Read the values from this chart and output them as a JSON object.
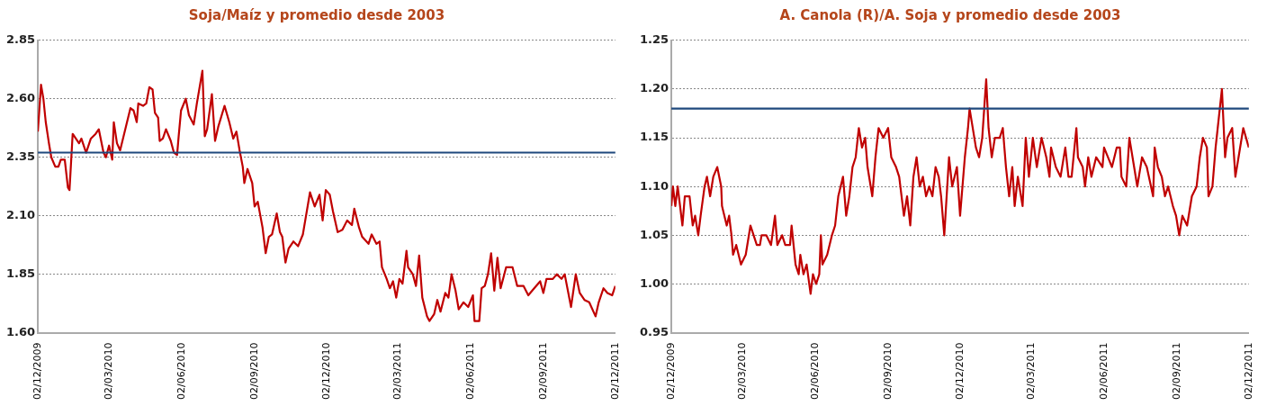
{
  "chart_data": [
    {
      "type": "line",
      "title": "Soja/Maíz y promedio desde 2003",
      "xlim": [
        "2009-12-02",
        "2011-12-02"
      ],
      "xticks": [
        {
          "value": "2009-12-02",
          "label": "02/12/2009"
        },
        {
          "value": "2010-03-02",
          "label": "02/03/2010"
        },
        {
          "value": "2010-06-02",
          "label": "02/06/2010"
        },
        {
          "value": "2010-09-02",
          "label": "02/09/2010"
        },
        {
          "value": "2010-12-02",
          "label": "02/12/2010"
        },
        {
          "value": "2011-03-02",
          "label": "02/03/2011"
        },
        {
          "value": "2011-06-02",
          "label": "02/06/2011"
        },
        {
          "value": "2011-09-02",
          "label": "02/09/2011"
        },
        {
          "value": "2011-12-02",
          "label": "02/12/2011"
        }
      ],
      "ylim": [
        1.6,
        2.85
      ],
      "yticks": [
        {
          "value": 1.6,
          "label": "1.60"
        },
        {
          "value": 1.85,
          "label": "1.85"
        },
        {
          "value": 2.1,
          "label": "2.10"
        },
        {
          "value": 2.35,
          "label": "2.35"
        },
        {
          "value": 2.6,
          "label": "2.60"
        },
        {
          "value": 2.85,
          "label": "2.85"
        }
      ],
      "grid": "y",
      "legend": false,
      "marker": "none",
      "line_style": "solid",
      "ref_lines": [
        {
          "axis": "y",
          "value": 2.37,
          "color": "#1f497d"
        }
      ],
      "series": [
        {
          "color": "#c00000",
          "x": [
            "2009-12-02",
            "2009-12-06",
            "2009-12-09",
            "2009-12-12",
            "2009-12-16",
            "2009-12-19",
            "2009-12-24",
            "2009-12-28",
            "2009-12-31",
            "2010-01-05",
            "2010-01-09",
            "2010-01-11",
            "2010-01-15",
            "2010-01-19",
            "2010-01-23",
            "2010-01-26",
            "2010-02-01",
            "2010-02-07",
            "2010-02-13",
            "2010-02-17",
            "2010-02-23",
            "2010-02-26",
            "2010-03-02",
            "2010-03-06",
            "2010-03-08",
            "2010-03-12",
            "2010-03-16",
            "2010-03-24",
            "2010-03-29",
            "2010-04-02",
            "2010-04-06",
            "2010-04-08",
            "2010-04-14",
            "2010-04-18",
            "2010-04-22",
            "2010-04-26",
            "2010-04-29",
            "2010-05-03",
            "2010-05-05",
            "2010-05-09",
            "2010-05-13",
            "2010-05-19",
            "2010-05-23",
            "2010-05-27",
            "2010-05-29",
            "2010-06-01",
            "2010-06-07",
            "2010-06-11",
            "2010-06-17",
            "2010-06-21",
            "2010-06-28",
            "2010-07-01",
            "2010-07-04",
            "2010-07-10",
            "2010-07-14",
            "2010-07-18",
            "2010-07-26",
            "2010-08-01",
            "2010-08-06",
            "2010-08-10",
            "2010-08-14",
            "2010-08-18",
            "2010-08-20",
            "2010-08-24",
            "2010-08-30",
            "2010-09-02",
            "2010-09-06",
            "2010-09-12",
            "2010-09-16",
            "2010-09-20",
            "2010-09-24",
            "2010-09-30",
            "2010-10-04",
            "2010-10-07",
            "2010-10-11",
            "2010-10-15",
            "2010-10-21",
            "2010-10-27",
            "2010-11-02",
            "2010-11-11",
            "2010-11-17",
            "2010-11-23",
            "2010-11-27",
            "2010-12-01",
            "2010-12-06",
            "2010-12-10",
            "2010-12-16",
            "2010-12-22",
            "2010-12-28",
            "2011-01-03",
            "2011-01-06",
            "2011-01-12",
            "2011-01-16",
            "2011-01-24",
            "2011-01-28",
            "2011-02-03",
            "2011-02-07",
            "2011-02-10",
            "2011-02-16",
            "2011-02-20",
            "2011-02-24",
            "2011-02-28",
            "2011-03-04",
            "2011-03-08",
            "2011-03-13",
            "2011-03-15",
            "2011-03-21",
            "2011-03-25",
            "2011-03-29",
            "2011-04-02",
            "2011-04-08",
            "2011-04-11",
            "2011-04-17",
            "2011-04-21",
            "2011-04-25",
            "2011-05-01",
            "2011-05-05",
            "2011-05-09",
            "2011-05-14",
            "2011-05-18",
            "2011-05-24",
            "2011-05-30",
            "2011-06-05",
            "2011-06-07",
            "2011-06-13",
            "2011-06-16",
            "2011-06-20",
            "2011-06-24",
            "2011-06-28",
            "2011-07-02",
            "2011-07-06",
            "2011-07-10",
            "2011-07-17",
            "2011-07-25",
            "2011-07-31",
            "2011-08-08",
            "2011-08-14",
            "2011-08-19",
            "2011-08-29",
            "2011-09-02",
            "2011-09-06",
            "2011-09-14",
            "2011-09-19",
            "2011-09-25",
            "2011-09-29",
            "2011-10-07",
            "2011-10-13",
            "2011-10-18",
            "2011-10-24",
            "2011-10-30",
            "2011-11-07",
            "2011-11-11",
            "2011-11-17",
            "2011-11-22",
            "2011-11-28",
            "2011-12-02"
          ],
          "values": [
            2.46,
            2.66,
            2.6,
            2.5,
            2.41,
            2.35,
            2.31,
            2.31,
            2.34,
            2.34,
            2.22,
            2.21,
            2.45,
            2.43,
            2.41,
            2.43,
            2.37,
            2.43,
            2.45,
            2.47,
            2.37,
            2.35,
            2.4,
            2.34,
            2.5,
            2.41,
            2.38,
            2.49,
            2.56,
            2.55,
            2.5,
            2.58,
            2.57,
            2.58,
            2.65,
            2.64,
            2.54,
            2.52,
            2.42,
            2.43,
            2.47,
            2.42,
            2.37,
            2.36,
            2.44,
            2.55,
            2.6,
            2.53,
            2.49,
            2.58,
            2.72,
            2.44,
            2.47,
            2.62,
            2.42,
            2.48,
            2.57,
            2.5,
            2.43,
            2.46,
            2.38,
            2.31,
            2.24,
            2.3,
            2.24,
            2.14,
            2.16,
            2.05,
            1.94,
            2.01,
            2.02,
            2.11,
            2.03,
            2.01,
            1.9,
            1.96,
            1.99,
            1.97,
            2.02,
            2.2,
            2.14,
            2.19,
            2.08,
            2.21,
            2.19,
            2.12,
            2.03,
            2.04,
            2.08,
            2.06,
            2.13,
            2.05,
            2.01,
            1.98,
            2.02,
            1.98,
            1.99,
            1.88,
            1.83,
            1.79,
            1.82,
            1.75,
            1.83,
            1.81,
            1.95,
            1.88,
            1.85,
            1.8,
            1.93,
            1.75,
            1.67,
            1.65,
            1.68,
            1.74,
            1.69,
            1.77,
            1.75,
            1.85,
            1.78,
            1.7,
            1.73,
            1.71,
            1.76,
            1.65,
            1.65,
            1.79,
            1.8,
            1.85,
            1.94,
            1.78,
            1.92,
            1.79,
            1.88,
            1.88,
            1.8,
            1.8,
            1.76,
            1.78,
            1.82,
            1.77,
            1.83,
            1.83,
            1.85,
            1.83,
            1.85,
            1.71,
            1.85,
            1.77,
            1.74,
            1.73,
            1.67,
            1.73,
            1.79,
            1.77,
            1.76,
            1.8
          ]
        }
      ]
    },
    {
      "type": "line",
      "title": "A. Canola (R)/A. Soja y promedio desde 2003",
      "xlim": [
        "2009-12-02",
        "2011-12-02"
      ],
      "xticks": [
        {
          "value": "2009-12-02",
          "label": "02/12/2009"
        },
        {
          "value": "2010-03-02",
          "label": "02/03/2010"
        },
        {
          "value": "2010-06-02",
          "label": "02/06/2010"
        },
        {
          "value": "2010-09-02",
          "label": "02/09/2010"
        },
        {
          "value": "2010-12-02",
          "label": "02/12/2010"
        },
        {
          "value": "2011-03-02",
          "label": "02/03/2011"
        },
        {
          "value": "2011-06-02",
          "label": "02/06/2011"
        },
        {
          "value": "2011-09-02",
          "label": "02/09/2011"
        },
        {
          "value": "2011-12-02",
          "label": "02/12/2011"
        }
      ],
      "ylim": [
        0.95,
        1.25
      ],
      "yticks": [
        {
          "value": 0.95,
          "label": "0.95"
        },
        {
          "value": 1.0,
          "label": "1.00"
        },
        {
          "value": 1.05,
          "label": "1.05"
        },
        {
          "value": 1.1,
          "label": "1.10"
        },
        {
          "value": 1.15,
          "label": "1.15"
        },
        {
          "value": 1.2,
          "label": "1.20"
        },
        {
          "value": 1.25,
          "label": "1.25"
        }
      ],
      "grid": "y",
      "legend": false,
      "marker": "none",
      "line_style": "solid",
      "ref_lines": [
        {
          "axis": "y",
          "value": 1.18,
          "color": "#1f497d"
        }
      ],
      "series": [
        {
          "color": "#c00000",
          "x": [
            "2009-12-02",
            "2009-12-04",
            "2009-12-07",
            "2009-12-10",
            "2009-12-13",
            "2009-12-16",
            "2009-12-19",
            "2009-12-25",
            "2009-12-29",
            "2010-01-01",
            "2010-01-05",
            "2010-01-08",
            "2010-01-13",
            "2010-01-16",
            "2010-01-20",
            "2010-01-24",
            "2010-01-29",
            "2010-02-03",
            "2010-02-04",
            "2010-02-10",
            "2010-02-13",
            "2010-02-16",
            "2010-02-18",
            "2010-02-22",
            "2010-02-28",
            "2010-03-06",
            "2010-03-12",
            "2010-03-16",
            "2010-03-20",
            "2010-03-24",
            "2010-03-26",
            "2010-04-01",
            "2010-04-07",
            "2010-04-12",
            "2010-04-15",
            "2010-04-21",
            "2010-04-25",
            "2010-05-01",
            "2010-05-03",
            "2010-05-08",
            "2010-05-12",
            "2010-05-14",
            "2010-05-18",
            "2010-05-22",
            "2010-05-27",
            "2010-05-30",
            "2010-06-03",
            "2010-06-07",
            "2010-06-09",
            "2010-06-11",
            "2010-06-17",
            "2010-06-23",
            "2010-06-27",
            "2010-07-01",
            "2010-07-07",
            "2010-07-11",
            "2010-07-15",
            "2010-07-19",
            "2010-07-23",
            "2010-07-27",
            "2010-07-31",
            "2010-08-04",
            "2010-08-07",
            "2010-08-13",
            "2010-08-17",
            "2010-08-21",
            "2010-08-27",
            "2010-09-02",
            "2010-09-06",
            "2010-09-12",
            "2010-09-16",
            "2010-09-22",
            "2010-09-26",
            "2010-09-30",
            "2010-10-04",
            "2010-10-08",
            "2010-10-12",
            "2010-10-16",
            "2010-10-20",
            "2010-10-24",
            "2010-10-28",
            "2010-11-01",
            "2010-11-05",
            "2010-11-08",
            "2010-11-12",
            "2010-11-18",
            "2010-11-22",
            "2010-11-28",
            "2010-12-02",
            "2010-12-08",
            "2010-12-12",
            "2010-12-14",
            "2010-12-22",
            "2010-12-26",
            "2010-12-30",
            "2011-01-04",
            "2011-01-07",
            "2011-01-11",
            "2011-01-15",
            "2011-01-21",
            "2011-01-25",
            "2011-01-29",
            "2011-02-02",
            "2011-02-06",
            "2011-02-09",
            "2011-02-13",
            "2011-02-19",
            "2011-02-23",
            "2011-02-27",
            "2011-03-04",
            "2011-03-09",
            "2011-03-15",
            "2011-03-21",
            "2011-03-25",
            "2011-03-27",
            "2011-04-02",
            "2011-04-08",
            "2011-04-14",
            "2011-04-18",
            "2011-04-22",
            "2011-04-28",
            "2011-04-30",
            "2011-05-06",
            "2011-05-09",
            "2011-05-13",
            "2011-05-17",
            "2011-05-23",
            "2011-05-31",
            "2011-06-02",
            "2011-06-12",
            "2011-06-18",
            "2011-06-22",
            "2011-06-24",
            "2011-06-30",
            "2011-07-04",
            "2011-07-10",
            "2011-07-14",
            "2011-07-20",
            "2011-07-26",
            "2011-08-03",
            "2011-08-05",
            "2011-08-09",
            "2011-08-14",
            "2011-08-18",
            "2011-08-22",
            "2011-08-28",
            "2011-09-01",
            "2011-09-05",
            "2011-09-09",
            "2011-09-15",
            "2011-09-21",
            "2011-09-27",
            "2011-10-01",
            "2011-10-05",
            "2011-10-10",
            "2011-10-12",
            "2011-10-17",
            "2011-10-21",
            "2011-10-25",
            "2011-10-29",
            "2011-11-02",
            "2011-11-05",
            "2011-11-11",
            "2011-11-15",
            "2011-11-19",
            "2011-11-25",
            "2011-12-02"
          ],
          "values": [
            1.08,
            1.1,
            1.08,
            1.1,
            1.08,
            1.06,
            1.09,
            1.09,
            1.06,
            1.07,
            1.05,
            1.07,
            1.1,
            1.11,
            1.09,
            1.11,
            1.12,
            1.1,
            1.08,
            1.06,
            1.07,
            1.05,
            1.03,
            1.04,
            1.02,
            1.03,
            1.06,
            1.05,
            1.04,
            1.04,
            1.05,
            1.05,
            1.04,
            1.07,
            1.04,
            1.05,
            1.04,
            1.04,
            1.06,
            1.02,
            1.01,
            1.03,
            1.01,
            1.02,
            0.99,
            1.01,
            1.0,
            1.01,
            1.05,
            1.02,
            1.03,
            1.05,
            1.06,
            1.09,
            1.11,
            1.07,
            1.09,
            1.12,
            1.13,
            1.16,
            1.14,
            1.15,
            1.12,
            1.09,
            1.13,
            1.16,
            1.15,
            1.16,
            1.13,
            1.12,
            1.11,
            1.07,
            1.09,
            1.06,
            1.11,
            1.13,
            1.1,
            1.11,
            1.09,
            1.1,
            1.09,
            1.12,
            1.11,
            1.09,
            1.05,
            1.13,
            1.1,
            1.12,
            1.07,
            1.13,
            1.16,
            1.18,
            1.14,
            1.13,
            1.15,
            1.21,
            1.16,
            1.13,
            1.15,
            1.15,
            1.16,
            1.12,
            1.09,
            1.12,
            1.08,
            1.11,
            1.08,
            1.15,
            1.11,
            1.15,
            1.12,
            1.15,
            1.13,
            1.11,
            1.14,
            1.12,
            1.11,
            1.14,
            1.11,
            1.11,
            1.16,
            1.13,
            1.12,
            1.1,
            1.13,
            1.11,
            1.13,
            1.12,
            1.14,
            1.12,
            1.14,
            1.14,
            1.11,
            1.1,
            1.15,
            1.12,
            1.1,
            1.13,
            1.12,
            1.09,
            1.14,
            1.12,
            1.11,
            1.09,
            1.1,
            1.08,
            1.07,
            1.05,
            1.07,
            1.06,
            1.09,
            1.1,
            1.13,
            1.15,
            1.14,
            1.09,
            1.1,
            1.14,
            1.17,
            1.2,
            1.13,
            1.15,
            1.16,
            1.11,
            1.13,
            1.16,
            1.14
          ]
        }
      ]
    }
  ]
}
